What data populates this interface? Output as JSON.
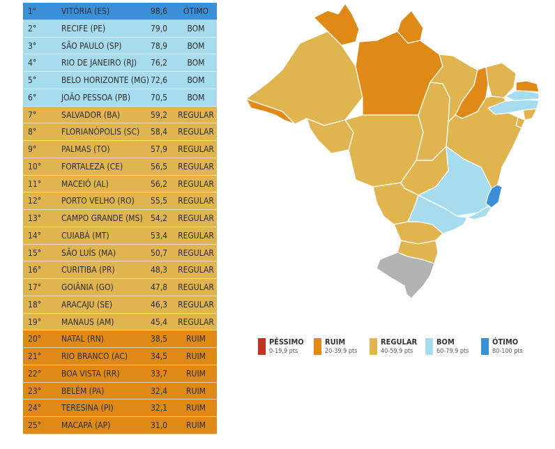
{
  "colors": {
    "otimo": "#3a8fd6",
    "bom": "#a7dcef",
    "regular": "#e0b54f",
    "ruim": "#df8a17",
    "pessimo": "#c0351d",
    "no_data": "#b3b3b3"
  },
  "ranking": [
    {
      "pos": "1°",
      "city": "VITÓRIA (ES)",
      "score": "98,6",
      "rating": "ÓTIMO",
      "tier": "otimo"
    },
    {
      "pos": "2°",
      "city": "RECIFE (PE)",
      "score": "79,0",
      "rating": "BOM",
      "tier": "bom"
    },
    {
      "pos": "3°",
      "city": "SÃO PAULO (SP)",
      "score": "78,9",
      "rating": "BOM",
      "tier": "bom"
    },
    {
      "pos": "4°",
      "city": "RIO DE JANEIRO (RJ)",
      "score": "76,2",
      "rating": "BOM",
      "tier": "bom"
    },
    {
      "pos": "5°",
      "city": "BELO HORIZONTE (MG)",
      "score": "72,6",
      "rating": "BOM",
      "tier": "bom"
    },
    {
      "pos": "6°",
      "city": "JOÃO PESSOA (PB)",
      "score": "70,5",
      "rating": "BOM",
      "tier": "bom"
    },
    {
      "pos": "7°",
      "city": "SALVADOR (BA)",
      "score": "59,2",
      "rating": "REGULAR",
      "tier": "regular"
    },
    {
      "pos": "8°",
      "city": "FLORIANÓPOLIS (SC)",
      "score": "58,4",
      "rating": "REGULAR",
      "tier": "regular"
    },
    {
      "pos": "9°",
      "city": "PALMAS (TO)",
      "score": "57,9",
      "rating": "REGULAR",
      "tier": "regular"
    },
    {
      "pos": "10°",
      "city": "FORTALEZA (CE)",
      "score": "56,5",
      "rating": "REGULAR",
      "tier": "regular"
    },
    {
      "pos": "11°",
      "city": "MACEIÓ (AL)",
      "score": "56,2",
      "rating": "REGULAR",
      "tier": "regular"
    },
    {
      "pos": "12°",
      "city": "PORTO VELHO (RO)",
      "score": "55,5",
      "rating": "REGULAR",
      "tier": "regular"
    },
    {
      "pos": "13°",
      "city": "CAMPO GRANDE (MS)",
      "score": "54,2",
      "rating": "REGULAR",
      "tier": "regular"
    },
    {
      "pos": "14°",
      "city": "CUIABÁ (MT)",
      "score": "53,4",
      "rating": "REGULAR",
      "tier": "regular"
    },
    {
      "pos": "15°",
      "city": "SÃO LUÍS (MA)",
      "score": "50,7",
      "rating": "REGULAR",
      "tier": "regular"
    },
    {
      "pos": "16°",
      "city": "CURITIBA (PR)",
      "score": "48,3",
      "rating": "REGULAR",
      "tier": "regular"
    },
    {
      "pos": "17°",
      "city": "GOIÂNIA (GO)",
      "score": "47,8",
      "rating": "REGULAR",
      "tier": "regular"
    },
    {
      "pos": "18°",
      "city": "ARACAJU (SE)",
      "score": "46,3",
      "rating": "REGULAR",
      "tier": "regular"
    },
    {
      "pos": "19°",
      "city": "MANAUS (AM)",
      "score": "45,4",
      "rating": "REGULAR",
      "tier": "regular"
    },
    {
      "pos": "20°",
      "city": "NATAL (RN)",
      "score": "38,5",
      "rating": "RUIM",
      "tier": "ruim"
    },
    {
      "pos": "21°",
      "city": "RIO BRANCO (AC)",
      "score": "34,5",
      "rating": "RUIM",
      "tier": "ruim"
    },
    {
      "pos": "22°",
      "city": "BOA VISTA (RR)",
      "score": "33,7",
      "rating": "RUIM",
      "tier": "ruim"
    },
    {
      "pos": "23°",
      "city": "BELÉM (PA)",
      "score": "32,4",
      "rating": "RUIM",
      "tier": "ruim"
    },
    {
      "pos": "24°",
      "city": "TERESINA (PI)",
      "score": "32,1",
      "rating": "RUIM",
      "tier": "ruim"
    },
    {
      "pos": "25°",
      "city": "MACAPÁ (AP)",
      "score": "31,0",
      "rating": "RUIM",
      "tier": "ruim"
    }
  ],
  "map": {
    "states": [
      {
        "uf": "AC",
        "tier": "ruim"
      },
      {
        "uf": "AM",
        "tier": "regular"
      },
      {
        "uf": "RR",
        "tier": "ruim"
      },
      {
        "uf": "PA",
        "tier": "ruim"
      },
      {
        "uf": "AP",
        "tier": "ruim"
      },
      {
        "uf": "RO",
        "tier": "regular"
      },
      {
        "uf": "MT",
        "tier": "regular"
      },
      {
        "uf": "TO",
        "tier": "regular"
      },
      {
        "uf": "MA",
        "tier": "regular"
      },
      {
        "uf": "PI",
        "tier": "ruim"
      },
      {
        "uf": "CE",
        "tier": "regular"
      },
      {
        "uf": "RN",
        "tier": "ruim"
      },
      {
        "uf": "PB",
        "tier": "bom"
      },
      {
        "uf": "PE",
        "tier": "bom"
      },
      {
        "uf": "AL",
        "tier": "regular"
      },
      {
        "uf": "SE",
        "tier": "regular"
      },
      {
        "uf": "BA",
        "tier": "regular"
      },
      {
        "uf": "GO",
        "tier": "regular"
      },
      {
        "uf": "MS",
        "tier": "regular"
      },
      {
        "uf": "MG",
        "tier": "bom"
      },
      {
        "uf": "ES",
        "tier": "otimo"
      },
      {
        "uf": "RJ",
        "tier": "bom"
      },
      {
        "uf": "SP",
        "tier": "bom"
      },
      {
        "uf": "PR",
        "tier": "regular"
      },
      {
        "uf": "SC",
        "tier": "regular"
      },
      {
        "uf": "RS",
        "tier": "no_data"
      }
    ]
  },
  "legend": [
    {
      "name": "PÉSSIMO",
      "range": "0-19,9 pts",
      "tier": "pessimo"
    },
    {
      "name": "RUIM",
      "range": "20-39,9 pts",
      "tier": "ruim"
    },
    {
      "name": "REGULAR",
      "range": "40-59,9 pts",
      "tier": "regular"
    },
    {
      "name": "BOM",
      "range": "60-79,9 pts",
      "tier": "bom"
    },
    {
      "name": "ÓTIMO",
      "range": "80-100 pts",
      "tier": "otimo"
    }
  ]
}
